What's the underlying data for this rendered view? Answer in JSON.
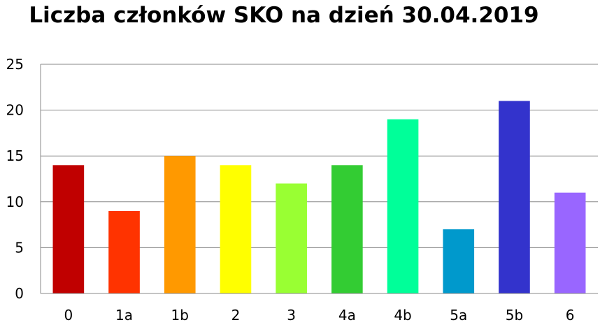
{
  "chart_data": {
    "type": "bar",
    "title": "Liczba członków SKO na dzień 30.04.2019",
    "xlabel": "",
    "ylabel": "",
    "categories": [
      "0",
      "1a",
      "1b",
      "2",
      "3",
      "4a",
      "4b",
      "5a",
      "5b",
      "6"
    ],
    "values": [
      14,
      9,
      15,
      14,
      12,
      14,
      19,
      7,
      21,
      11
    ],
    "colors": [
      "#C00000",
      "#FF3300",
      "#FF9900",
      "#FFFF00",
      "#99FF33",
      "#33CC33",
      "#00FF99",
      "#0099CC",
      "#3333CC",
      "#9966FF"
    ],
    "ylim": [
      0,
      25
    ],
    "yticks": [
      "0",
      "5",
      "10",
      "15",
      "20",
      "25"
    ],
    "grid": true,
    "legend": "none"
  }
}
